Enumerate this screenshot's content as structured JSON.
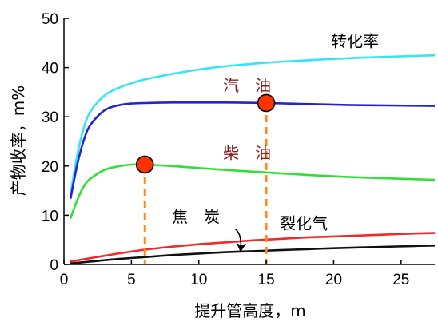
{
  "chart_data": {
    "type": "line",
    "xlabel": "提升管高度，m",
    "ylabel": "产物收率，m%",
    "xlim": [
      0,
      27.5
    ],
    "ylim": [
      0,
      50
    ],
    "x_ticks": [
      0,
      5,
      10,
      15,
      20,
      25
    ],
    "y_ticks": [
      0,
      10,
      20,
      30,
      40,
      50
    ],
    "grid": false,
    "series": [
      {
        "name": "转化率",
        "color": "#33e5f5",
        "x": [
          0.5,
          1,
          1.5,
          2,
          3,
          4,
          5,
          6,
          8,
          10,
          12,
          15,
          18,
          21,
          24,
          27.5
        ],
        "y": [
          14.5,
          22.5,
          28,
          31.2,
          34.3,
          35.8,
          36.8,
          37.6,
          38.7,
          39.6,
          40.3,
          41,
          41.5,
          41.9,
          42.2,
          42.5
        ]
      },
      {
        "name": "汽 油",
        "color": "#2424cc",
        "x": [
          0.5,
          1,
          1.5,
          2,
          3,
          4,
          5,
          6,
          8,
          10,
          12,
          15,
          18,
          21,
          24,
          27.5
        ],
        "y": [
          13.5,
          20.5,
          25.5,
          28.5,
          31.3,
          32.3,
          32.7,
          32.8,
          32.9,
          32.9,
          32.9,
          32.8,
          32.6,
          32.4,
          32.3,
          32.2
        ]
      },
      {
        "name": "柴 油",
        "color": "#2fe036",
        "x": [
          0.5,
          1,
          1.5,
          2,
          3,
          4,
          5,
          6,
          8,
          10,
          12,
          15,
          18,
          21,
          24,
          27.5
        ],
        "y": [
          9.5,
          13.2,
          16,
          17.5,
          19.2,
          19.9,
          20.3,
          20.3,
          20,
          19.6,
          19.2,
          18.7,
          18.2,
          17.8,
          17.5,
          17.2
        ]
      },
      {
        "name": "裂化气",
        "color": "#f02a2a",
        "x": [
          0.5,
          2,
          4,
          6,
          8,
          10,
          12,
          14,
          16,
          18,
          20,
          22,
          24,
          26,
          27.5
        ],
        "y": [
          0.6,
          1.3,
          2.2,
          3,
          3.6,
          4.1,
          4.5,
          4.9,
          5.2,
          5.5,
          5.7,
          5.9,
          6.1,
          6.3,
          6.4
        ]
      },
      {
        "name": "焦 炭",
        "color": "#111111",
        "x": [
          0.5,
          2,
          4,
          6,
          8,
          10,
          12,
          14,
          16,
          18,
          20,
          22,
          24,
          26,
          27.5
        ],
        "y": [
          0.2,
          0.6,
          1.1,
          1.5,
          1.9,
          2.2,
          2.5,
          2.7,
          2.9,
          3.1,
          3.3,
          3.45,
          3.6,
          3.75,
          3.85
        ]
      }
    ],
    "markers": [
      {
        "x": 6,
        "y": 20.3,
        "color": "#ff3300",
        "line_color": "#ff8c1a"
      },
      {
        "x": 15,
        "y": 32.8,
        "color": "#ff3300",
        "line_color": "#ff8c1a"
      }
    ],
    "annotations": [
      {
        "text": "转化率",
        "x": 19.8,
        "y": 44.2,
        "color": "#000000"
      },
      {
        "text": "汽　油",
        "x": 11.8,
        "y": 35.2,
        "color": "#8b1a1a"
      },
      {
        "text": "柴　油",
        "x": 11.8,
        "y": 21.5,
        "color": "#8b1a1a"
      },
      {
        "text": "焦　炭",
        "x": 8,
        "y": 8.6,
        "color": "#000000"
      },
      {
        "text": "裂化气",
        "x": 16,
        "y": 7.2,
        "color": "#000000"
      }
    ],
    "arrow": {
      "from": [
        12.7,
        7.2
      ],
      "to": [
        13.1,
        2.8
      ],
      "color": "#000000"
    }
  }
}
